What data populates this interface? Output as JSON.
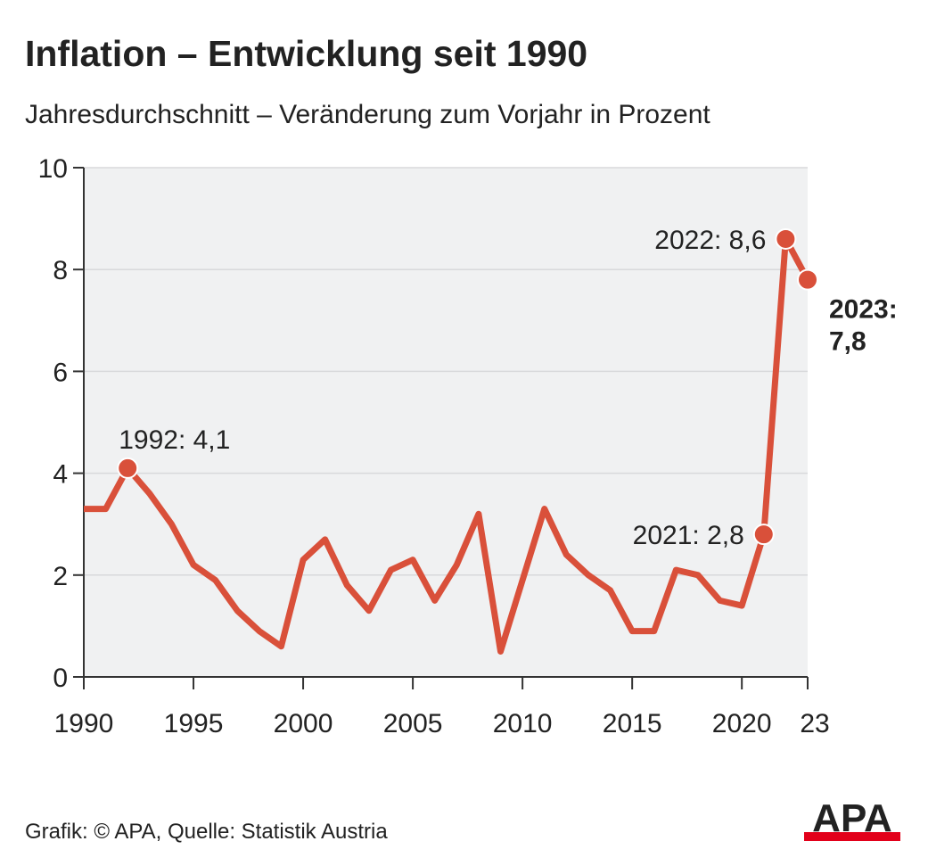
{
  "chart_data": {
    "type": "line",
    "title": "Inflation – Entwicklung seit 1990",
    "subtitle": "Jahresdurchschnitt  – Veränderung zum Vorjahr in Prozent",
    "source": "Grafik: © APA, Quelle: Statistik Austria",
    "logo": "APA",
    "x": [
      1990,
      1991,
      1992,
      1993,
      1994,
      1995,
      1996,
      1997,
      1998,
      1999,
      2000,
      2001,
      2002,
      2003,
      2004,
      2005,
      2006,
      2007,
      2008,
      2009,
      2010,
      2011,
      2012,
      2013,
      2014,
      2015,
      2016,
      2017,
      2018,
      2019,
      2020,
      2021,
      2022,
      2023
    ],
    "series": [
      {
        "name": "Inflation",
        "color": "#d9503a",
        "values": [
          3.3,
          3.3,
          4.1,
          3.6,
          3.0,
          2.2,
          1.9,
          1.3,
          0.9,
          0.6,
          2.3,
          2.7,
          1.8,
          1.3,
          2.1,
          2.3,
          1.5,
          2.2,
          3.2,
          0.5,
          1.9,
          3.3,
          2.4,
          2.0,
          1.7,
          0.9,
          0.9,
          2.1,
          2.0,
          1.5,
          1.4,
          2.8,
          8.6,
          7.8
        ],
        "value_labels": [
          null,
          null,
          "1992: 4,1",
          null,
          null,
          null,
          null,
          null,
          null,
          null,
          null,
          null,
          null,
          null,
          null,
          null,
          null,
          null,
          null,
          null,
          null,
          null,
          null,
          null,
          null,
          null,
          null,
          null,
          null,
          null,
          null,
          "2021: 2,8",
          "2022: 8,6",
          "2023: 7,8"
        ]
      }
    ],
    "xlim": [
      1990,
      2023
    ],
    "xticks": [
      1990,
      1995,
      2000,
      2005,
      2010,
      2015,
      2020,
      {
        "value": 2023,
        "label": "23"
      }
    ],
    "ylim": [
      0,
      10
    ],
    "yticks": [
      0,
      2,
      4,
      6,
      8,
      10
    ],
    "grid": true
  }
}
